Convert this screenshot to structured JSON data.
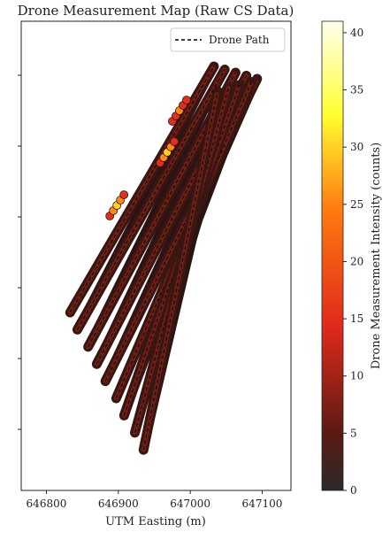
{
  "chart_data": {
    "type": "scatter",
    "title": "Drone Measurement Map (Raw CS Data)",
    "xlabel": "UTM Easting (m)",
    "ylabel": "",
    "xlim": [
      646765,
      647140
    ],
    "x_ticks": [
      {
        "value": 646800,
        "label": "646800"
      },
      {
        "value": 646900,
        "label": "646900"
      },
      {
        "value": 647000,
        "label": "647000"
      },
      {
        "value": 647100,
        "label": "647100"
      }
    ],
    "y_ticks_unlabeled": 6,
    "grid": false,
    "legend": {
      "position": "top-right",
      "entries": [
        {
          "label": "Drone Path",
          "style": "dashed",
          "color": "#000000"
        }
      ]
    },
    "colorbar": {
      "label": "Drone Measurement Intensity (counts)",
      "colormap": "hot",
      "range": [
        0,
        41
      ],
      "ticks": [
        0,
        5,
        10,
        15,
        20,
        25,
        30,
        35,
        40
      ]
    },
    "path_passes": [
      {
        "x_start": 646833,
        "x_end": 647033
      },
      {
        "x_start": 646843,
        "x_end": 647048
      },
      {
        "x_start": 646858,
        "x_end": 647063
      },
      {
        "x_start": 646870,
        "x_end": 647078
      },
      {
        "x_start": 646882,
        "x_end": 647093
      },
      {
        "x_start": 646897,
        "x_end": 647085
      },
      {
        "x_start": 646908,
        "x_end": 647068
      },
      {
        "x_start": 646923,
        "x_end": 647053
      },
      {
        "x_start": 646935,
        "x_end": 647038
      }
    ],
    "hotspots": [
      {
        "x": 646968,
        "intensity": 28
      },
      {
        "x": 646898,
        "intensity": 25
      },
      {
        "x": 646985,
        "intensity": 20
      }
    ]
  }
}
